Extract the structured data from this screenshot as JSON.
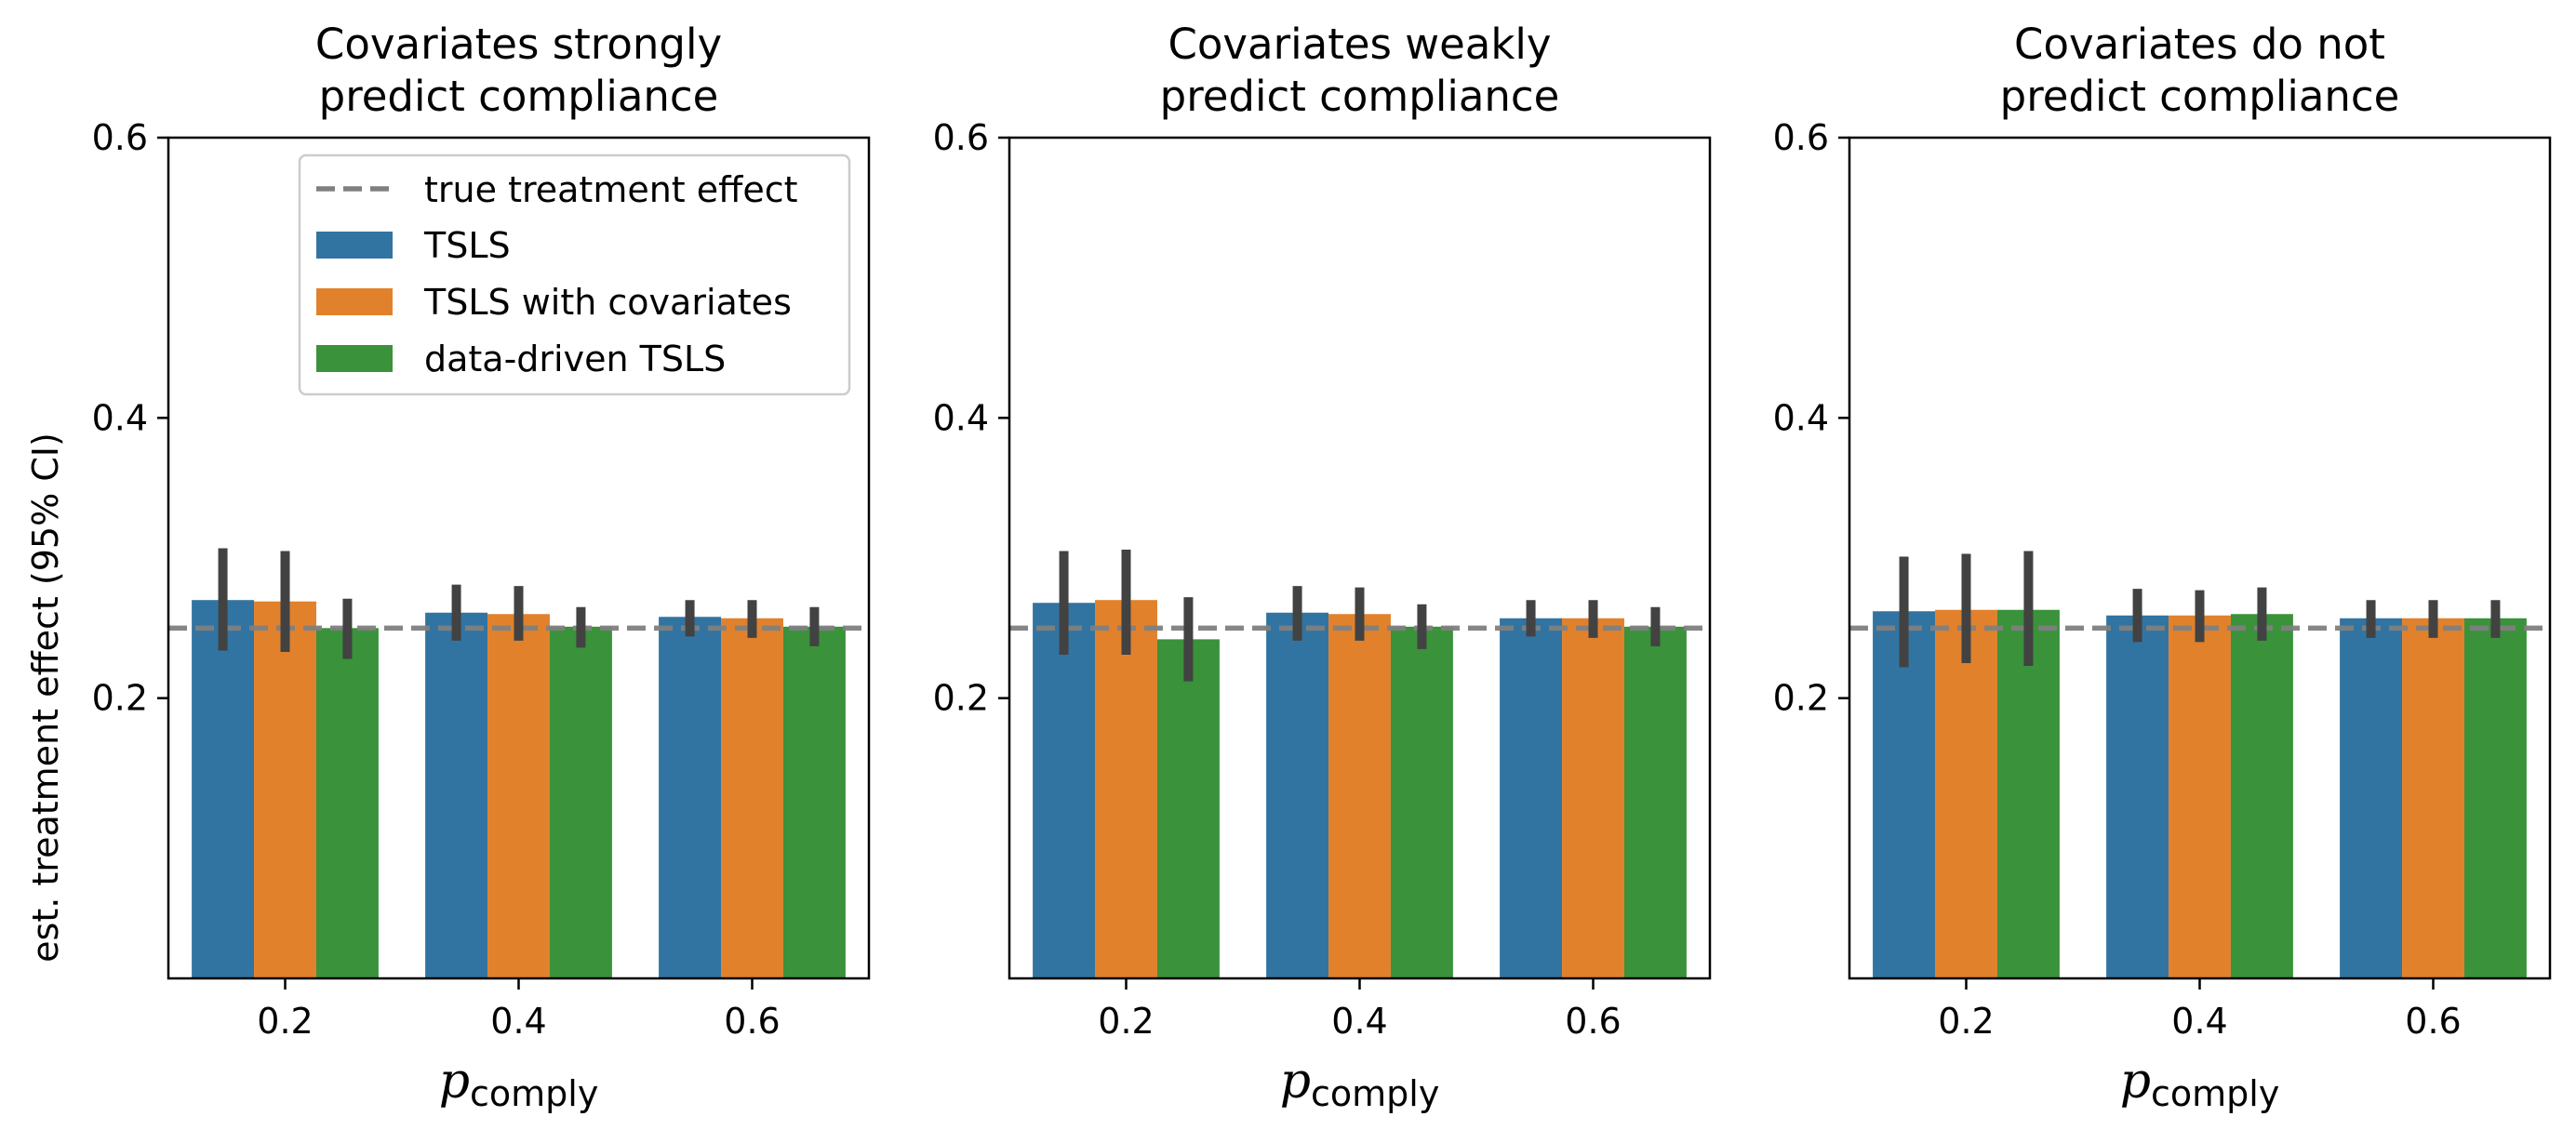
{
  "chart_data": [
    {
      "type": "bar",
      "title_lines": [
        "Covariates strongly",
        "predict compliance"
      ],
      "categories": [
        "0.2",
        "0.4",
        "0.6"
      ],
      "xlabel_main": "p",
      "xlabel_sub": "comply",
      "ylabel": "est. treatment effect (95% CI)",
      "ylim": [
        0,
        0.6
      ],
      "yticks": [
        "0.2",
        "0.4",
        "0.6"
      ],
      "reference_line": {
        "label": "true treatment effect",
        "value": 0.25
      },
      "legend_position": "upper right",
      "series": [
        {
          "name": "TSLS",
          "values": [
            0.27,
            0.261,
            0.258
          ],
          "ci_low": [
            0.234,
            0.241,
            0.244
          ],
          "ci_high": [
            0.307,
            0.281,
            0.27
          ]
        },
        {
          "name": "TSLS with covariates",
          "values": [
            0.269,
            0.26,
            0.257
          ],
          "ci_low": [
            0.233,
            0.241,
            0.243
          ],
          "ci_high": [
            0.305,
            0.28,
            0.27
          ]
        },
        {
          "name": "data-driven TSLS",
          "values": [
            0.25,
            0.251,
            0.251
          ],
          "ci_low": [
            0.228,
            0.236,
            0.237
          ],
          "ci_high": [
            0.271,
            0.265,
            0.265
          ]
        }
      ]
    },
    {
      "type": "bar",
      "title_lines": [
        "Covariates weakly",
        "predict compliance"
      ],
      "categories": [
        "0.2",
        "0.4",
        "0.6"
      ],
      "xlabel_main": "p",
      "xlabel_sub": "comply",
      "ylim": [
        0,
        0.6
      ],
      "yticks": [
        "0.2",
        "0.4",
        "0.6"
      ],
      "reference_line": {
        "value": 0.25
      },
      "series": [
        {
          "name": "TSLS",
          "values": [
            0.268,
            0.261,
            0.257
          ],
          "ci_low": [
            0.231,
            0.241,
            0.244
          ],
          "ci_high": [
            0.305,
            0.28,
            0.27
          ]
        },
        {
          "name": "TSLS with covariates",
          "values": [
            0.27,
            0.26,
            0.257
          ],
          "ci_low": [
            0.231,
            0.241,
            0.243
          ],
          "ci_high": [
            0.306,
            0.279,
            0.27
          ]
        },
        {
          "name": "data-driven TSLS",
          "values": [
            0.242,
            0.251,
            0.251
          ],
          "ci_low": [
            0.212,
            0.235,
            0.237
          ],
          "ci_high": [
            0.272,
            0.267,
            0.265
          ]
        }
      ]
    },
    {
      "type": "bar",
      "title_lines": [
        "Covariates do not",
        "predict compliance"
      ],
      "categories": [
        "0.2",
        "0.4",
        "0.6"
      ],
      "xlabel_main": "p",
      "xlabel_sub": "comply",
      "ylim": [
        0,
        0.6
      ],
      "yticks": [
        "0.2",
        "0.4",
        "0.6"
      ],
      "reference_line": {
        "value": 0.25
      },
      "series": [
        {
          "name": "TSLS",
          "values": [
            0.262,
            0.259,
            0.257
          ],
          "ci_low": [
            0.222,
            0.24,
            0.243
          ],
          "ci_high": [
            0.301,
            0.278,
            0.27
          ]
        },
        {
          "name": "TSLS with covariates",
          "values": [
            0.263,
            0.259,
            0.257
          ],
          "ci_low": [
            0.225,
            0.24,
            0.243
          ],
          "ci_high": [
            0.303,
            0.277,
            0.27
          ]
        },
        {
          "name": "data-driven TSLS",
          "values": [
            0.263,
            0.26,
            0.257
          ],
          "ci_low": [
            0.223,
            0.241,
            0.243
          ],
          "ci_high": [
            0.305,
            0.279,
            0.27
          ]
        }
      ]
    }
  ],
  "colors": {
    "series": [
      "#3274a1",
      "#e1812c",
      "#3a923a"
    ],
    "errorbar": "#424242",
    "reference_line": "#808080",
    "axes": "#000000",
    "background": "#ffffff"
  }
}
